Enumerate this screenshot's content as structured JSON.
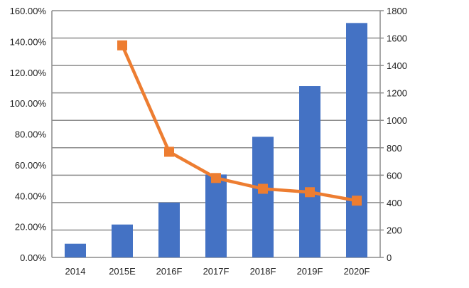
{
  "chart_data": {
    "type": "bar+line",
    "title": "",
    "categories": [
      "2014",
      "2015E",
      "2016F",
      "2017F",
      "2018F",
      "2019F",
      "2020F"
    ],
    "series": [
      {
        "type": "bar",
        "axis": "right",
        "color": "#4472C4",
        "values": [
          100,
          240,
          400,
          605,
          880,
          1250,
          1710
        ]
      },
      {
        "type": "line",
        "axis": "left",
        "color": "#ED7D31",
        "marker": "square",
        "values": [
          null,
          137.5,
          68.5,
          51.5,
          44.5,
          42.3,
          36.8
        ]
      }
    ],
    "left_axis": {
      "ylim": [
        0,
        160
      ],
      "ticks": [
        "0.00%",
        "20.00%",
        "40.00%",
        "60.00%",
        "80.00%",
        "100.00%",
        "120.00%",
        "140.00%",
        "160.00%"
      ]
    },
    "right_axis": {
      "ylim": [
        0,
        1800
      ],
      "ticks": [
        "0",
        "200",
        "400",
        "600",
        "800",
        "1000",
        "1200",
        "1400",
        "1600",
        "1800"
      ]
    },
    "grid": true,
    "legend": "none"
  }
}
